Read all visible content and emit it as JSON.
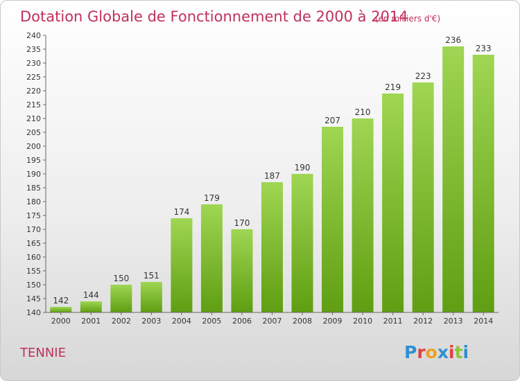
{
  "chart_data": {
    "type": "bar",
    "title": "Dotation Globale de Fonctionnement de 2000 à 2014",
    "subtitle": "(en milliers d'€)",
    "categories": [
      "2000",
      "2001",
      "2002",
      "2003",
      "2004",
      "2005",
      "2006",
      "2007",
      "2008",
      "2009",
      "2010",
      "2011",
      "2012",
      "2013",
      "2014"
    ],
    "values": [
      142,
      144,
      150,
      151,
      174,
      179,
      170,
      187,
      190,
      207,
      210,
      219,
      223,
      236,
      233
    ],
    "ylim": [
      140,
      240
    ],
    "yticks": [
      140,
      145,
      150,
      155,
      160,
      165,
      170,
      175,
      180,
      185,
      190,
      195,
      200,
      205,
      210,
      215,
      220,
      225,
      230,
      235,
      240
    ],
    "grid": false,
    "legend": "none",
    "colors": {
      "bar_light": "#9fd653",
      "bar_dark": "#5f9e12",
      "text_accent": "#c0305a"
    }
  },
  "footer": {
    "commune": "TENNIE",
    "logo": {
      "text": "Proxiti",
      "letters": [
        {
          "char": "P",
          "color": "#2f8fd0"
        },
        {
          "char": "r",
          "color": "#e04040"
        },
        {
          "char": "o",
          "color": "#f0a020"
        },
        {
          "char": "x",
          "color": "#2f8fd0"
        },
        {
          "char": "i",
          "color": "#e04040"
        },
        {
          "char": "t",
          "color": "#8cc43c"
        },
        {
          "char": "i",
          "color": "#2f8fd0"
        }
      ]
    }
  }
}
